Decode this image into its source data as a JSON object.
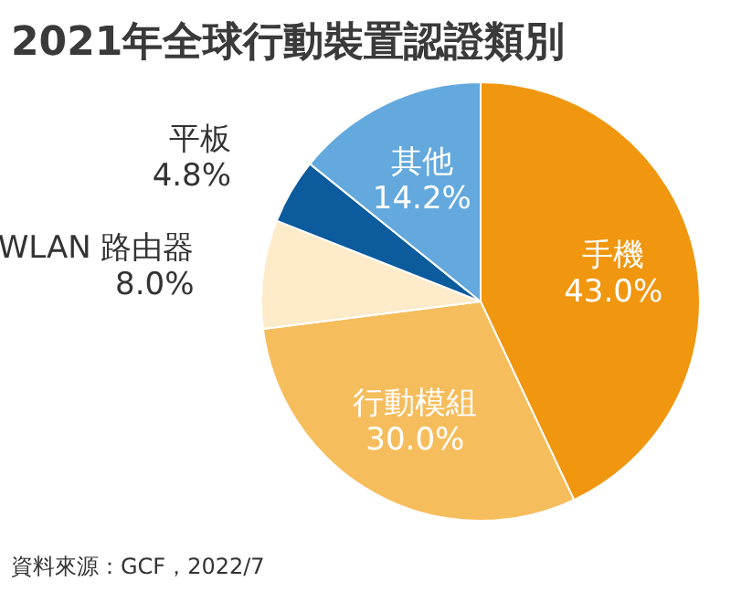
{
  "chart_data": {
    "type": "pie",
    "title": "2021年全球行動裝置認證類別",
    "categories": [
      "手機",
      "行動模組",
      "WLAN 路由器",
      "平板",
      "其他"
    ],
    "values": [
      43.0,
      30.0,
      8.0,
      4.8,
      14.2
    ],
    "colors": [
      "#f0960f",
      "#f6bd5c",
      "#fdebc9",
      "#0b5b9d",
      "#63a9dd"
    ],
    "value_labels": [
      "43.0%",
      "30.0%",
      "8.0%",
      "4.8%",
      "14.2%"
    ],
    "annotations": [
      "資料來源：GCF，2022/7"
    ]
  }
}
